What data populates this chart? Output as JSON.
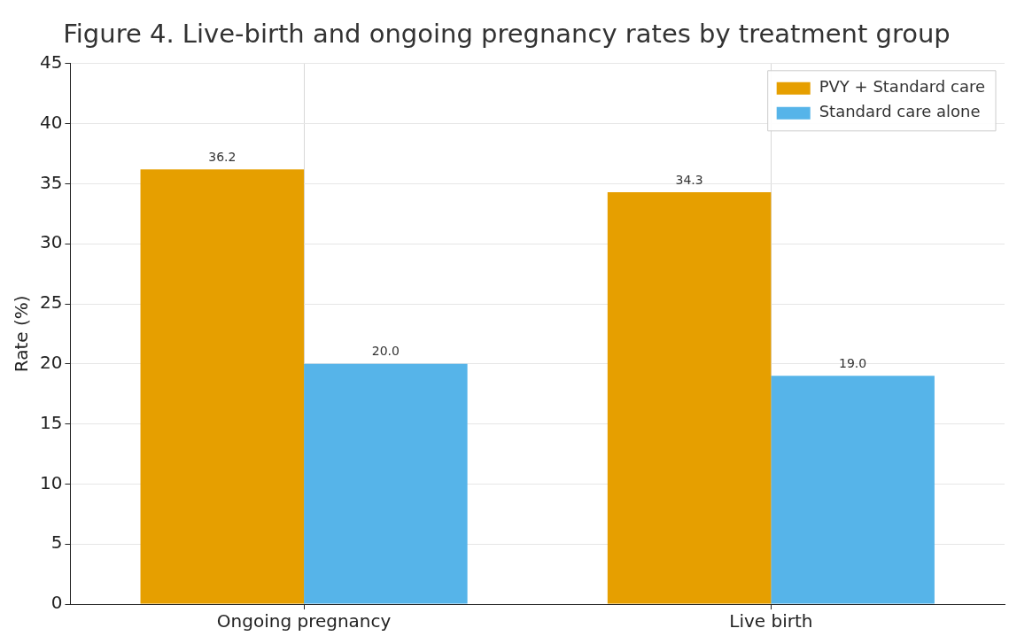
{
  "chart_data": {
    "type": "bar",
    "title": "Figure 4. Live-birth and ongoing pregnancy rates by treatment group",
    "ylabel": "Rate (%)",
    "categories": [
      "Ongoing pregnancy",
      "Live birth"
    ],
    "series": [
      {
        "name": "PVY + Standard care",
        "color": "#e69f00",
        "values": [
          36.2,
          34.3
        ]
      },
      {
        "name": "Standard care alone",
        "color": "#56b4e9",
        "values": [
          20.0,
          19.0
        ]
      }
    ],
    "value_labels": [
      [
        "36.2",
        "34.3"
      ],
      [
        "20.0",
        "19.0"
      ]
    ],
    "ylim": [
      0,
      45
    ],
    "yticks": [
      0,
      5,
      10,
      15,
      20,
      25,
      30,
      35,
      40,
      45
    ],
    "grid": true,
    "legend": "top right"
  }
}
